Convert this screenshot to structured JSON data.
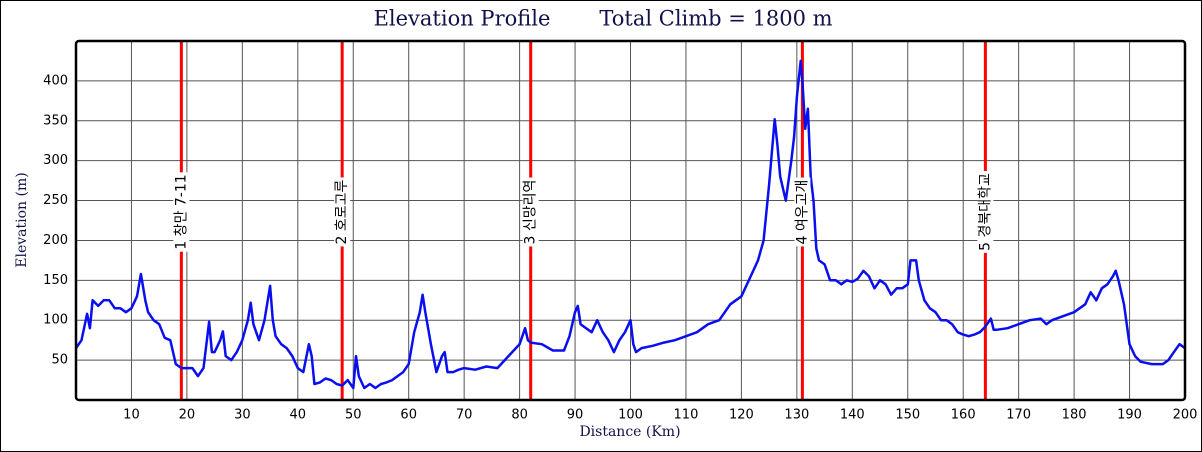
{
  "chart_data": {
    "type": "line",
    "title": "Elevation Profile",
    "subtitle": "Total Climb = 1800 m",
    "x_label": "Distance (Km)",
    "y_label": "Elevation (m)",
    "xlim": [
      0,
      200
    ],
    "ylim": [
      0,
      450
    ],
    "xticks": [
      10,
      20,
      30,
      40,
      50,
      60,
      70,
      80,
      90,
      100,
      110,
      120,
      130,
      140,
      150,
      160,
      170,
      180,
      190,
      200
    ],
    "yticks": [
      50,
      100,
      150,
      200,
      250,
      300,
      350,
      400
    ],
    "grid": true,
    "series": [
      {
        "color": "#0a0ff0",
        "x": [
          0,
          1,
          2,
          2.5,
          3,
          4,
          5,
          6,
          7,
          8,
          9,
          10,
          11,
          11.7,
          12.5,
          13,
          14,
          15,
          16,
          17,
          18,
          19,
          20,
          21,
          22,
          23,
          24,
          24.5,
          25,
          26,
          26.5,
          27,
          28,
          29,
          30,
          31,
          31.5,
          32,
          33,
          34,
          35,
          35.5,
          36,
          37,
          38,
          39,
          40,
          41,
          42,
          42.5,
          43,
          44,
          45,
          46,
          47,
          48,
          49,
          50,
          50.5,
          51,
          52,
          53,
          54,
          55,
          56,
          57,
          58,
          59,
          60,
          61,
          62,
          62.5,
          63,
          64,
          65,
          66,
          66.5,
          67,
          68,
          69,
          70,
          72,
          74,
          76,
          78,
          80,
          81,
          81.5,
          82,
          84,
          86,
          88,
          89,
          90,
          90.5,
          91,
          92,
          93,
          94,
          95,
          96,
          97,
          98,
          99,
          100,
          100.5,
          101,
          102,
          104,
          106,
          108,
          110,
          112,
          114,
          116,
          117,
          118,
          120,
          122,
          123,
          124,
          125,
          126,
          126.5,
          127,
          128,
          129,
          129.5,
          130,
          130.7,
          131,
          131.5,
          132,
          132.5,
          133,
          133.5,
          134,
          135,
          136,
          137,
          138,
          139,
          140,
          141,
          142,
          143,
          144,
          145,
          146,
          147,
          148,
          149,
          150,
          150.5,
          151.5,
          152,
          153,
          154,
          155,
          156,
          157,
          158,
          159,
          160,
          161,
          162,
          163,
          164,
          165,
          165.5,
          166,
          168,
          170,
          172,
          174,
          175,
          176,
          178,
          180,
          182,
          183,
          184,
          185,
          186,
          187,
          187.5,
          188,
          189,
          190,
          191,
          192,
          194,
          196,
          197,
          198,
          199,
          200
        ],
        "values": [
          65,
          75,
          108,
          90,
          125,
          118,
          125,
          125,
          115,
          115,
          110,
          115,
          130,
          158,
          125,
          110,
          100,
          95,
          78,
          75,
          45,
          40,
          40,
          40,
          30,
          40,
          98,
          60,
          60,
          75,
          86,
          55,
          50,
          60,
          75,
          100,
          122,
          95,
          75,
          100,
          143,
          100,
          80,
          70,
          65,
          55,
          40,
          35,
          70,
          55,
          20,
          22,
          27,
          25,
          20,
          18,
          25,
          15,
          55,
          30,
          15,
          20,
          15,
          20,
          22,
          25,
          30,
          35,
          45,
          85,
          110,
          132,
          110,
          70,
          35,
          55,
          60,
          35,
          35,
          38,
          40,
          38,
          42,
          40,
          55,
          70,
          90,
          75,
          72,
          70,
          62,
          62,
          80,
          110,
          118,
          95,
          90,
          85,
          100,
          85,
          75,
          60,
          75,
          85,
          100,
          70,
          60,
          65,
          68,
          72,
          75,
          80,
          85,
          95,
          100,
          110,
          120,
          130,
          160,
          175,
          200,
          270,
          352,
          320,
          280,
          250,
          300,
          330,
          380,
          425,
          400,
          340,
          365,
          280,
          250,
          190,
          175,
          170,
          150,
          150,
          145,
          150,
          148,
          152,
          162,
          155,
          140,
          150,
          145,
          132,
          140,
          140,
          145,
          175,
          175,
          150,
          125,
          115,
          110,
          100,
          100,
          95,
          85,
          82,
          80,
          82,
          85,
          92,
          102,
          88,
          88,
          90,
          95,
          100,
          102,
          95,
          100,
          105,
          110,
          120,
          135,
          125,
          140,
          145,
          155,
          162,
          150,
          120,
          70,
          55,
          48,
          45,
          45,
          50,
          60,
          70,
          65
        ]
      }
    ],
    "markers": [
      {
        "x": 19,
        "label": "1 창만 7-11"
      },
      {
        "x": 48,
        "label": "2 호로고루"
      },
      {
        "x": 82,
        "label": "3 신망리역"
      },
      {
        "x": 131,
        "label": "4 여우고개"
      },
      {
        "x": 164,
        "label": "5 경북대학교"
      }
    ]
  }
}
